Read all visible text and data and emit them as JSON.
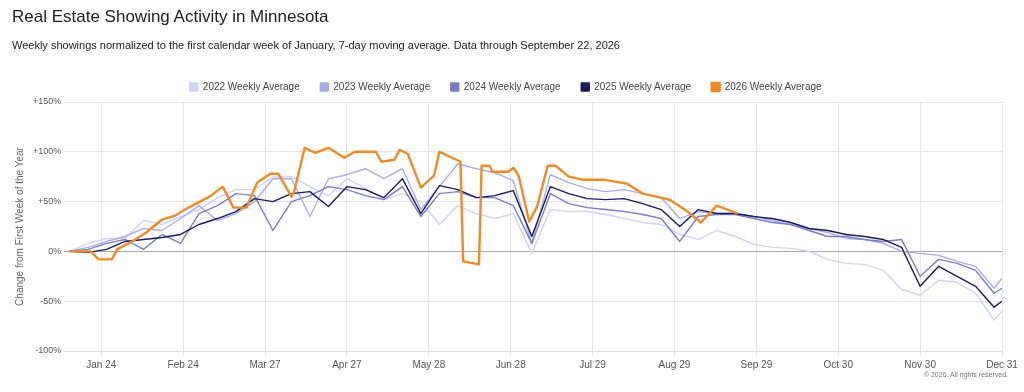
{
  "chart_data": {
    "type": "line",
    "title": "Real Estate Showing Activity in Minnesota",
    "subtitle": "Weekly showings normalized to the first calendar week of January, 7-day moving average. Data through September 22, 2026",
    "ylabel": "Change from First Week of the Year",
    "annotations": [
      "© 2026. All rights reserved."
    ],
    "x": [
      "--01-12",
      "--01-19",
      "--01-26",
      "--02-02",
      "--02-09",
      "--02-16",
      "--02-23",
      "--03-02",
      "--03-09",
      "--03-16",
      "--03-23",
      "--03-30",
      "--04-06",
      "--04-13",
      "--04-20",
      "--04-27",
      "--05-04",
      "--05-11",
      "--05-18",
      "--05-25",
      "--06-01",
      "--06-08",
      "--06-15",
      "--06-22",
      "--06-29",
      "--07-06",
      "--07-13",
      "--07-20",
      "--07-27",
      "--08-03",
      "--08-10",
      "--08-17",
      "--08-24",
      "--08-31",
      "--09-07",
      "--09-14",
      "--09-21",
      "--09-28",
      "--10-05",
      "--10-12",
      "--10-19",
      "--10-26",
      "--11-02",
      "--11-09",
      "--11-16",
      "--11-23",
      "--11-30",
      "--12-07",
      "--12-14",
      "--12-21",
      "--12-28",
      "--12-31"
    ],
    "series": [
      {
        "name": "2022 Weekly Average",
        "color": "#d0d3f5",
        "values": [
          0,
          8,
          13,
          13,
          31,
          27,
          35,
          42,
          54,
          62,
          62,
          75,
          75,
          65,
          56,
          73,
          63,
          52,
          58,
          50,
          27,
          46,
          38,
          33,
          38,
          -2,
          42,
          40,
          40,
          37,
          33,
          29,
          27,
          17,
          12,
          21,
          15,
          7,
          4,
          3,
          0,
          -8,
          -12,
          -13,
          -19,
          -38,
          -44,
          -29,
          -31,
          -42,
          -69,
          -60
        ]
      },
      {
        "name": "2023 Weekly Average",
        "color": "#a9acea",
        "values": [
          0,
          4,
          10,
          15,
          23,
          21,
          33,
          46,
          31,
          38,
          50,
          73,
          73,
          35,
          73,
          77,
          83,
          73,
          83,
          42,
          65,
          88,
          83,
          79,
          71,
          8,
          77,
          69,
          63,
          60,
          62,
          58,
          54,
          33,
          40,
          38,
          38,
          35,
          31,
          27,
          23,
          19,
          13,
          12,
          8,
          0,
          -2,
          -4,
          -10,
          -15,
          -37,
          -27
        ]
      },
      {
        "name": "2024 Weekly Average",
        "color": "#7a7fc4",
        "values": [
          0,
          2,
          8,
          12,
          2,
          17,
          8,
          38,
          46,
          58,
          56,
          21,
          50,
          56,
          65,
          62,
          56,
          52,
          65,
          35,
          58,
          60,
          54,
          54,
          46,
          8,
          58,
          48,
          44,
          42,
          40,
          37,
          33,
          10,
          35,
          37,
          37,
          33,
          29,
          27,
          21,
          15,
          15,
          12,
          10,
          12,
          -25,
          -8,
          -12,
          -19,
          -42,
          -37
        ]
      },
      {
        "name": "2025 Weekly Average",
        "color": "#1c1a5e",
        "values": [
          0,
          -1,
          2,
          10,
          12,
          14,
          17,
          27,
          33,
          40,
          53,
          50,
          58,
          60,
          45,
          65,
          62,
          54,
          73,
          38,
          66,
          62,
          54,
          56,
          61,
          15,
          65,
          58,
          53,
          52,
          53,
          48,
          42,
          25,
          42,
          38,
          38,
          35,
          33,
          29,
          23,
          21,
          17,
          15,
          12,
          4,
          -35,
          -15,
          -25,
          -35,
          -56,
          -50
        ]
      },
      {
        "name": "2026 Weekly Average",
        "color": "#f08a24",
        "x": [
          "--01-12",
          "--01-20",
          "--01-23",
          "--01-28",
          "--01-30",
          "--02-04",
          "--02-10",
          "--02-16",
          "--02-21",
          "--02-26",
          "--03-06",
          "--03-11",
          "--03-15",
          "--03-20",
          "--03-24",
          "--03-29",
          "--04-01",
          "--04-06",
          "--04-07",
          "--04-11",
          "--04-15",
          "--04-20",
          "--04-26",
          "--04-30",
          "--05-08",
          "--05-10",
          "--05-15",
          "--05-17",
          "--05-20",
          "--05-25",
          "--05-30",
          "--06-01",
          "--06-05",
          "--06-09",
          "--06-10",
          "--06-16",
          "--06-17",
          "--06-20",
          "--06-21",
          "--06-27",
          "--06-29",
          "--07-01",
          "--07-05",
          "--07-08",
          "--07-12",
          "--07-15",
          "--07-20",
          "--07-25",
          "--08-02",
          "--08-11",
          "--08-17",
          "--08-27",
          "--09-03",
          "--09-08",
          "--09-14",
          "--09-22"
        ],
        "values": [
          0,
          0,
          -8,
          -8,
          2,
          9,
          19,
          32,
          36,
          44,
          55,
          65,
          44,
          44,
          69,
          78,
          78,
          55,
          60,
          104,
          99,
          104,
          94,
          100,
          100,
          90,
          92,
          102,
          98,
          64,
          76,
          100,
          95,
          90,
          -10,
          -13,
          86,
          86,
          80,
          80,
          84,
          76,
          30,
          45,
          86,
          86,
          75,
          72,
          72,
          68,
          58,
          52,
          40,
          29,
          46,
          38
        ]
      }
    ],
    "xlim": [
      "--01-10",
      "--12-31"
    ],
    "xticks": [
      {
        "value": "--01-24",
        "label": "Jan 24"
      },
      {
        "value": "--02-24",
        "label": "Feb 24"
      },
      {
        "value": "--03-27",
        "label": "Mar 27"
      },
      {
        "value": "--04-27",
        "label": "Apr 27"
      },
      {
        "value": "--05-28",
        "label": "May 28"
      },
      {
        "value": "--06-28",
        "label": "Jun 28"
      },
      {
        "value": "--07-29",
        "label": "Jul 29"
      },
      {
        "value": "--08-29",
        "label": "Aug 29"
      },
      {
        "value": "--09-29",
        "label": "Sep 29"
      },
      {
        "value": "--10-30",
        "label": "Oct 30"
      },
      {
        "value": "--11-30",
        "label": "Nov 30"
      },
      {
        "value": "--12-31",
        "label": "Dec 31"
      }
    ],
    "ylim": [
      -100,
      150
    ],
    "yticks": [
      {
        "value": -100,
        "label": "-100%"
      },
      {
        "value": -50,
        "label": "-50%"
      },
      {
        "value": 0,
        "label": "0%"
      },
      {
        "value": 50,
        "label": "+50%"
      },
      {
        "value": 100,
        "label": "+100%"
      },
      {
        "value": 150,
        "label": "+150%"
      }
    ],
    "grid": true,
    "legend": "top",
    "marker": "none",
    "line_style": "solid"
  }
}
